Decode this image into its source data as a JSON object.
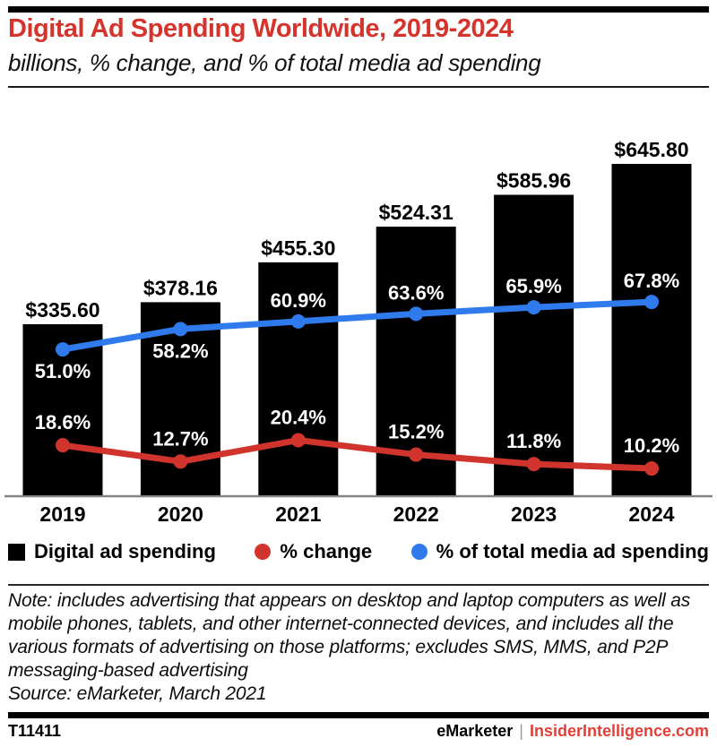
{
  "header": {
    "title": "Digital Ad Spending Worldwide, 2019-2024",
    "subtitle": "billions, % change, and % of total media ad spending"
  },
  "chart_data": {
    "type": "bar",
    "title": "Digital Ad Spending Worldwide, 2019-2024",
    "subtitle": "billions, % change, and % of total media ad spending",
    "categories": [
      "2019",
      "2020",
      "2021",
      "2022",
      "2023",
      "2024"
    ],
    "series": [
      {
        "name": "Digital ad spending",
        "type": "bar",
        "unit": "USD billions",
        "color": "#000000",
        "values": [
          335.6,
          378.16,
          455.3,
          524.31,
          585.96,
          645.8
        ],
        "labels": [
          "$335.60",
          "$378.16",
          "$455.30",
          "$524.31",
          "$585.96",
          "$645.80"
        ]
      },
      {
        "name": "% change",
        "type": "line",
        "unit": "percent",
        "color": "#d0342c",
        "values": [
          18.6,
          12.7,
          20.4,
          15.2,
          11.8,
          10.2
        ],
        "labels": [
          "18.6%",
          "12.7%",
          "20.4%",
          "15.2%",
          "11.8%",
          "10.2%"
        ],
        "label_positions": [
          "above",
          "above",
          "above",
          "above",
          "above",
          "above"
        ]
      },
      {
        "name": "% of total media ad spending",
        "type": "line",
        "unit": "percent",
        "color": "#2f7bed",
        "values": [
          51.0,
          58.2,
          60.9,
          63.6,
          65.9,
          67.8
        ],
        "labels": [
          "51.0%",
          "58.2%",
          "60.9%",
          "63.6%",
          "65.9%",
          "67.8%"
        ],
        "label_positions": [
          "below",
          "below",
          "above",
          "above",
          "above",
          "above"
        ]
      }
    ],
    "legend_position": "bottom",
    "grid": false,
    "axis_baseline": true
  },
  "colors": {
    "accent_red": "#d5342c",
    "line_red": "#d0342c",
    "line_blue": "#2f7bed",
    "bar_black": "#000000",
    "axis_gray": "#848484",
    "footer_red": "#e23f38",
    "separator_gray": "#9b9b9b"
  },
  "note": {
    "text": "Note: includes advertising that appears on desktop and laptop computers as well as mobile phones, tablets, and other internet-connected devices, and includes all the various formats of advertising on those platforms; excludes SMS, MMS, and P2P messaging-based advertising",
    "source": "Source: eMarketer, March 2021"
  },
  "footer": {
    "report_id": "T11411",
    "brand": "eMarketer",
    "separator": "|",
    "site": "InsiderIntelligence.com"
  }
}
